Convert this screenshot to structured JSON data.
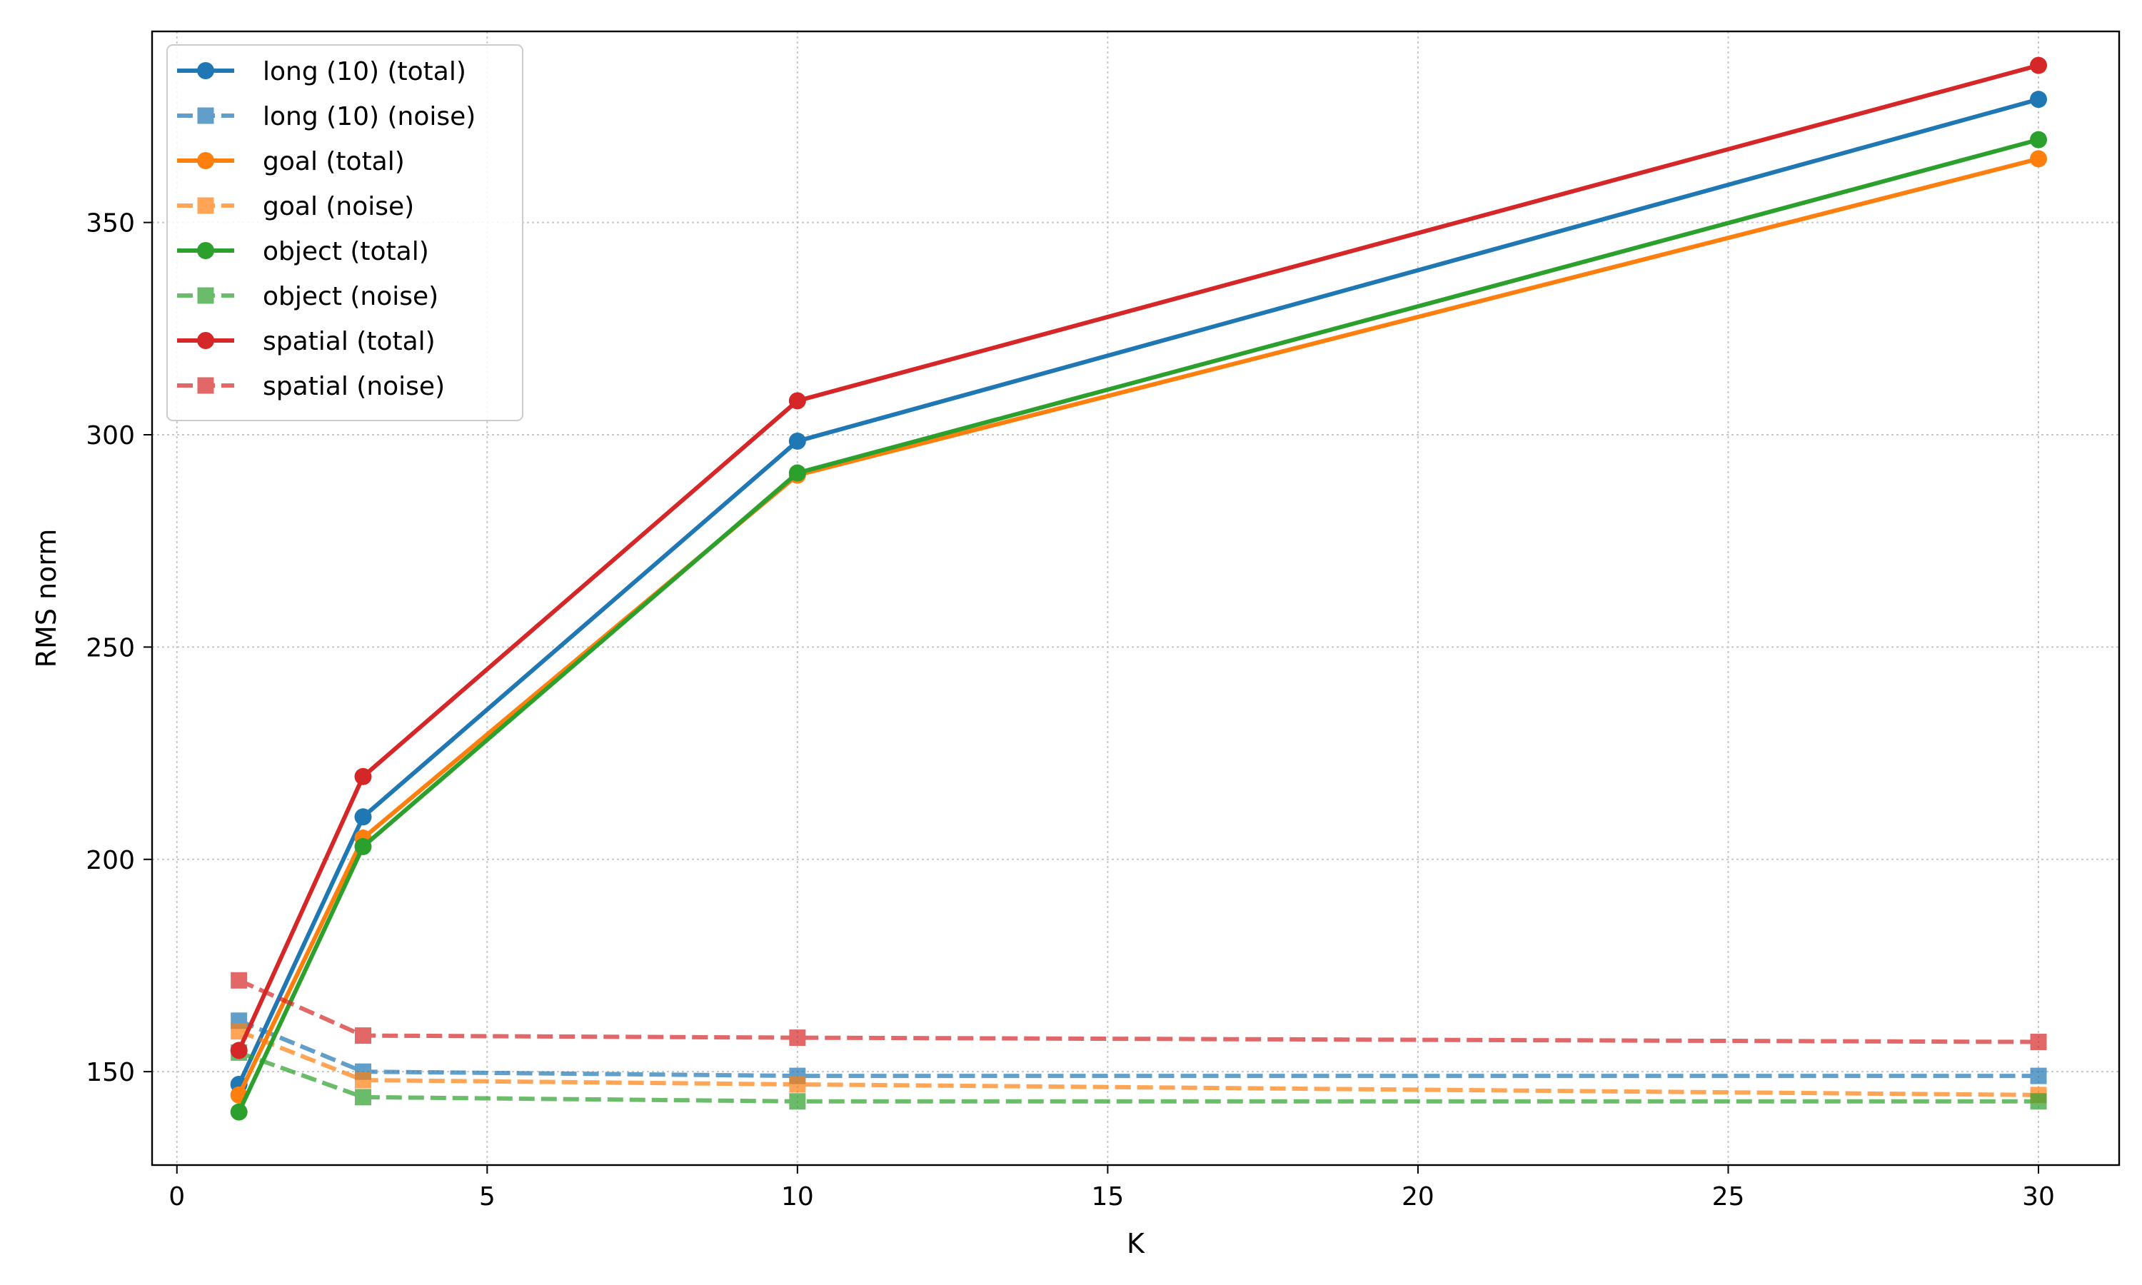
{
  "chart_data": {
    "type": "line",
    "title": "",
    "xlabel": "K",
    "ylabel": "RMS norm",
    "xlim": [
      -0.4,
      31.3
    ],
    "ylim": [
      128,
      395
    ],
    "xticks": [
      0,
      5,
      10,
      15,
      20,
      25,
      30
    ],
    "yticks": [
      150,
      200,
      250,
      300,
      350
    ],
    "grid": true,
    "legend_position": "upper-left",
    "x": [
      1,
      3,
      10,
      30
    ],
    "series": [
      {
        "name": "long (10) (total)",
        "color": "#1f77b4",
        "style": "solid",
        "marker": "circle",
        "values": [
          147,
          210,
          298.5,
          379
        ]
      },
      {
        "name": "long (10) (noise)",
        "color": "#1f77b4",
        "style": "dashed",
        "marker": "square",
        "values": [
          162,
          150,
          149,
          149
        ]
      },
      {
        "name": "goal (total)",
        "color": "#ff7f0e",
        "style": "solid",
        "marker": "circle",
        "values": [
          144.5,
          205,
          290.5,
          365
        ]
      },
      {
        "name": "goal (noise)",
        "color": "#ff7f0e",
        "style": "dashed",
        "marker": "square",
        "values": [
          159.5,
          148,
          147,
          144.5
        ]
      },
      {
        "name": "object (total)",
        "color": "#2ca02c",
        "style": "solid",
        "marker": "circle",
        "values": [
          140.5,
          203,
          291,
          369.5
        ]
      },
      {
        "name": "object (noise)",
        "color": "#2ca02c",
        "style": "dashed",
        "marker": "square",
        "values": [
          154.5,
          144,
          143,
          143
        ]
      },
      {
        "name": "spatial (total)",
        "color": "#d62728",
        "style": "solid",
        "marker": "circle",
        "values": [
          155,
          219.5,
          308,
          387
        ]
      },
      {
        "name": "spatial (noise)",
        "color": "#d62728",
        "style": "dashed",
        "marker": "square",
        "values": [
          171.5,
          158.5,
          158,
          157
        ]
      }
    ]
  }
}
